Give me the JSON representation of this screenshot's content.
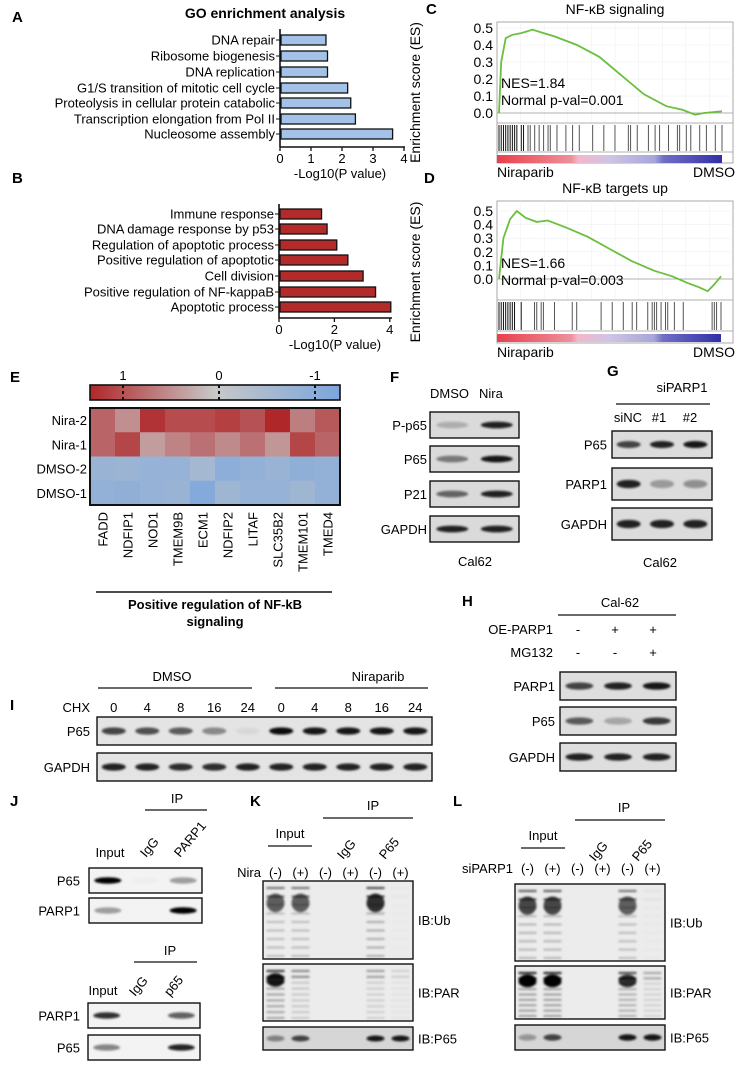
{
  "panels": {
    "A": "A",
    "B": "B",
    "C": "C",
    "D": "D",
    "E": "E",
    "F": "F",
    "G": "G",
    "H": "H",
    "I": "I",
    "J": "J",
    "K": "K",
    "L": "L"
  },
  "chart_data": [
    {
      "id": "A",
      "type": "bar",
      "orientation": "horizontal",
      "title": "GO enrichment analysis",
      "categories": [
        "DNA repair",
        "Ribosome biogenesis",
        "DNA replication",
        "G1/S transition of mitotic cell cycle",
        "Proteolysis in cellular protein catabolic",
        "Transcription elongation from Pol II",
        "Nucleosome assembly"
      ],
      "values": [
        1.45,
        1.5,
        1.5,
        2.15,
        2.25,
        2.4,
        3.6
      ],
      "xlabel": "-Log10(P value)",
      "xticks": [
        "0",
        "1",
        "2",
        "3",
        "4"
      ],
      "xlim": [
        0,
        4
      ],
      "color": "#a4c2e8"
    },
    {
      "id": "B",
      "type": "bar",
      "orientation": "horizontal",
      "categories": [
        "Immune response",
        "DNA damage response by p53",
        "Regulation of apoptotic process",
        "Positive regulation of apoptotic",
        "Cell division",
        "Positive regulation of NF-kappaB",
        "Apoptotic process"
      ],
      "values": [
        1.5,
        1.7,
        2.05,
        2.45,
        3.0,
        3.45,
        4.0
      ],
      "xlabel": "-Log10(P value)",
      "xticks": [
        "0",
        "2",
        "4"
      ],
      "xlim": [
        0,
        4.4
      ],
      "color": "#b22a2a"
    },
    {
      "id": "C",
      "type": "line",
      "title": "NF-κB signaling",
      "ylabel": "Enrichment score (ES)",
      "yticks": [
        "0.5",
        "0.4",
        "0.3",
        "0.2",
        "0.1",
        "0.0"
      ],
      "ylim": [
        0,
        0.5
      ],
      "x": [
        0,
        0.01,
        0.03,
        0.06,
        0.1,
        0.15,
        0.2,
        0.25,
        0.35,
        0.45,
        0.55,
        0.65,
        0.75,
        0.82,
        0.88,
        0.92,
        1.0
      ],
      "es": [
        0,
        0.3,
        0.44,
        0.46,
        0.47,
        0.49,
        0.47,
        0.45,
        0.4,
        0.33,
        0.22,
        0.11,
        0.04,
        0.02,
        -0.01,
        0.0,
        0.01
      ],
      "hits": [
        0.0,
        0.01,
        0.02,
        0.03,
        0.04,
        0.05,
        0.06,
        0.07,
        0.08,
        0.1,
        0.11,
        0.13,
        0.14,
        0.16,
        0.18,
        0.2,
        0.22,
        0.23,
        0.26,
        0.3,
        0.33,
        0.36,
        0.42,
        0.47,
        0.52,
        0.58,
        0.59,
        0.62,
        0.67,
        0.7,
        0.72,
        0.76,
        0.8,
        0.81,
        0.84,
        0.86,
        0.9,
        0.93,
        0.97,
        1.0
      ],
      "nes": "NES=1.84",
      "pval": "Normal p-val=0.001",
      "left_label": "Niraparib",
      "right_label": "DMSO",
      "line_color": "#6abf3e"
    },
    {
      "id": "D",
      "type": "line",
      "title": "NF-κB targets up",
      "ylabel": "Enrichment score (ES)",
      "yticks": [
        "0.5",
        "0.4",
        "0.3",
        "0.2",
        "0.1",
        "0.0"
      ],
      "ylim": [
        0,
        0.5
      ],
      "x": [
        0,
        0.02,
        0.05,
        0.08,
        0.12,
        0.17,
        0.22,
        0.3,
        0.4,
        0.5,
        0.6,
        0.7,
        0.78,
        0.85,
        0.9,
        0.94,
        0.97,
        1.0
      ],
      "es": [
        0,
        0.3,
        0.44,
        0.5,
        0.45,
        0.42,
        0.43,
        0.38,
        0.31,
        0.22,
        0.13,
        0.06,
        0.02,
        -0.03,
        -0.06,
        -0.09,
        -0.04,
        0.02
      ],
      "hits": [
        0.0,
        0.01,
        0.02,
        0.03,
        0.04,
        0.05,
        0.06,
        0.07,
        0.1,
        0.16,
        0.17,
        0.19,
        0.2,
        0.25,
        0.33,
        0.35,
        0.46,
        0.51,
        0.56,
        0.6,
        0.62,
        0.67,
        0.69,
        0.7,
        0.71,
        0.73,
        0.75,
        0.76,
        0.79,
        0.83,
        0.96,
        0.97,
        0.98,
        1.0
      ],
      "nes": "NES=1.66",
      "pval": "Normal p-val=0.003",
      "left_label": "Niraparib",
      "right_label": "DMSO",
      "line_color": "#6abf3e"
    },
    {
      "id": "E",
      "type": "heatmap",
      "rows": [
        "Nira-2",
        "Nira-1",
        "DMSO-2",
        "DMSO-1"
      ],
      "columns": [
        "FADD",
        "NDFIP1",
        "NOD1",
        "TMEM9B",
        "ECM1",
        "NDFIP2",
        "LITAF",
        "SLC35B2",
        "TMEM101",
        "TMED4"
      ],
      "values": [
        [
          0.8,
          0.45,
          1.2,
          1.0,
          1.0,
          1.1,
          0.95,
          1.3,
          0.6,
          0.9
        ],
        [
          0.8,
          1.05,
          0.35,
          0.55,
          0.7,
          0.5,
          0.7,
          0.4,
          1.05,
          0.8
        ],
        [
          -0.8,
          -0.75,
          -0.85,
          -0.85,
          -0.6,
          -1.0,
          -0.9,
          -0.8,
          -0.95,
          -0.9
        ],
        [
          -0.9,
          -0.95,
          -0.85,
          -0.8,
          -1.15,
          -0.7,
          -0.85,
          -0.85,
          -0.7,
          -0.9
        ]
      ],
      "colorbar_ticks": [
        "1",
        "0",
        "-1"
      ],
      "vlim": [
        1.3,
        -1.3
      ],
      "colors": {
        "high": "#b0272a",
        "mid": "#c8c8c8",
        "low": "#7ba6dd"
      },
      "xlabel_line1": "Positive regulation of NF-kB",
      "xlabel_line2": "signaling"
    }
  ],
  "blots": {
    "F": {
      "lanes": [
        "DMSO",
        "Nira"
      ],
      "cell_line": "Cal62",
      "rows": [
        {
          "label": "P-p65",
          "bands": [
            0.2,
            0.85
          ]
        },
        {
          "label": "P65",
          "bands": [
            0.45,
            0.9
          ]
        },
        {
          "label": "P21",
          "bands": [
            0.55,
            0.85
          ]
        },
        {
          "label": "GAPDH",
          "bands": [
            0.85,
            0.85
          ]
        }
      ]
    },
    "G": {
      "group": "siPARP1",
      "lanes": [
        "siNC",
        "#1",
        "#2"
      ],
      "cell_line": "Cal62",
      "rows": [
        {
          "label": "P65",
          "bands": [
            0.7,
            0.85,
            0.9
          ]
        },
        {
          "label": "PARP1",
          "bands": [
            0.85,
            0.3,
            0.35
          ]
        },
        {
          "label": "GAPDH",
          "bands": [
            0.85,
            0.85,
            0.85
          ]
        }
      ]
    },
    "H": {
      "cell_line": "Cal-62",
      "conditions": [
        {
          "label": "OE-PARP1",
          "values": [
            "-",
            "+",
            "+"
          ]
        },
        {
          "label": "MG132",
          "values": [
            "-",
            "-",
            "+"
          ]
        }
      ],
      "rows": [
        {
          "label": "PARP1",
          "bands": [
            0.7,
            0.85,
            0.9
          ]
        },
        {
          "label": "P65",
          "bands": [
            0.6,
            0.25,
            0.75
          ]
        },
        {
          "label": "GAPDH",
          "bands": [
            0.85,
            0.85,
            0.85
          ]
        }
      ]
    },
    "I": {
      "groups": [
        "DMSO",
        "Niraparib"
      ],
      "chx_label": "CHX",
      "chx": [
        "0",
        "4",
        "8",
        "16",
        "24",
        "0",
        "4",
        "8",
        "16",
        "24"
      ],
      "rows": [
        {
          "label": "P65",
          "bands": [
            0.7,
            0.65,
            0.6,
            0.4,
            0.05,
            0.95,
            0.9,
            0.9,
            0.9,
            0.9
          ]
        },
        {
          "label": "GAPDH",
          "bands": [
            0.85,
            0.85,
            0.8,
            0.8,
            0.85,
            0.85,
            0.85,
            0.85,
            0.85,
            0.85
          ]
        }
      ]
    },
    "J1": {
      "ip": "IP",
      "lanes": [
        "Input",
        "IgG",
        "PARP1"
      ],
      "rows": [
        {
          "label": "P65",
          "bands": [
            1.0,
            0.02,
            0.35
          ]
        },
        {
          "label": "PARP1",
          "bands": [
            0.35,
            0.0,
            1.0
          ]
        }
      ]
    },
    "J2": {
      "ip": "IP",
      "lanes": [
        "Input",
        "IgG",
        "p65"
      ],
      "rows": [
        {
          "label": "PARP1",
          "bands": [
            0.8,
            0.0,
            0.6
          ]
        },
        {
          "label": "P65",
          "bands": [
            0.45,
            0.0,
            0.85
          ]
        }
      ]
    },
    "K": {
      "ip": "IP",
      "input": "Input",
      "ip_lanes": [
        "IgG",
        "P65"
      ],
      "treat_label": "Nira",
      "treat": [
        "(-)",
        "(+)",
        "(-)",
        "(+)",
        "(-)",
        "(+)"
      ],
      "rows": [
        {
          "label": "IB:Ub",
          "smear": true,
          "bands": [
            0.6,
            0.6,
            0.0,
            0.0,
            0.8,
            0.03
          ]
        },
        {
          "label": "IB:PAR",
          "smear": true,
          "bands": [
            0.9,
            0.5,
            0.0,
            0.0,
            0.4,
            0.15
          ]
        },
        {
          "label": "IB:P65",
          "bands": [
            0.4,
            0.7,
            0.0,
            0.0,
            0.9,
            0.9
          ]
        }
      ]
    },
    "L": {
      "ip": "IP",
      "input": "Input",
      "ip_lanes": [
        "IgG",
        "P65"
      ],
      "treat_label": "siPARP1",
      "treat": [
        "(-)",
        "(+)",
        "(-)",
        "(+)",
        "(-)",
        "(+)"
      ],
      "rows": [
        {
          "label": "IB:Ub",
          "smear": true,
          "bands": [
            0.7,
            0.7,
            0.0,
            0.0,
            0.6,
            0.05
          ]
        },
        {
          "label": "IB:PAR",
          "smear": true,
          "bands": [
            1.0,
            1.0,
            0.0,
            0.0,
            0.8,
            0.35
          ]
        },
        {
          "label": "IB:P65",
          "bands": [
            0.3,
            0.7,
            0.0,
            0.0,
            0.9,
            0.9
          ]
        }
      ]
    }
  }
}
